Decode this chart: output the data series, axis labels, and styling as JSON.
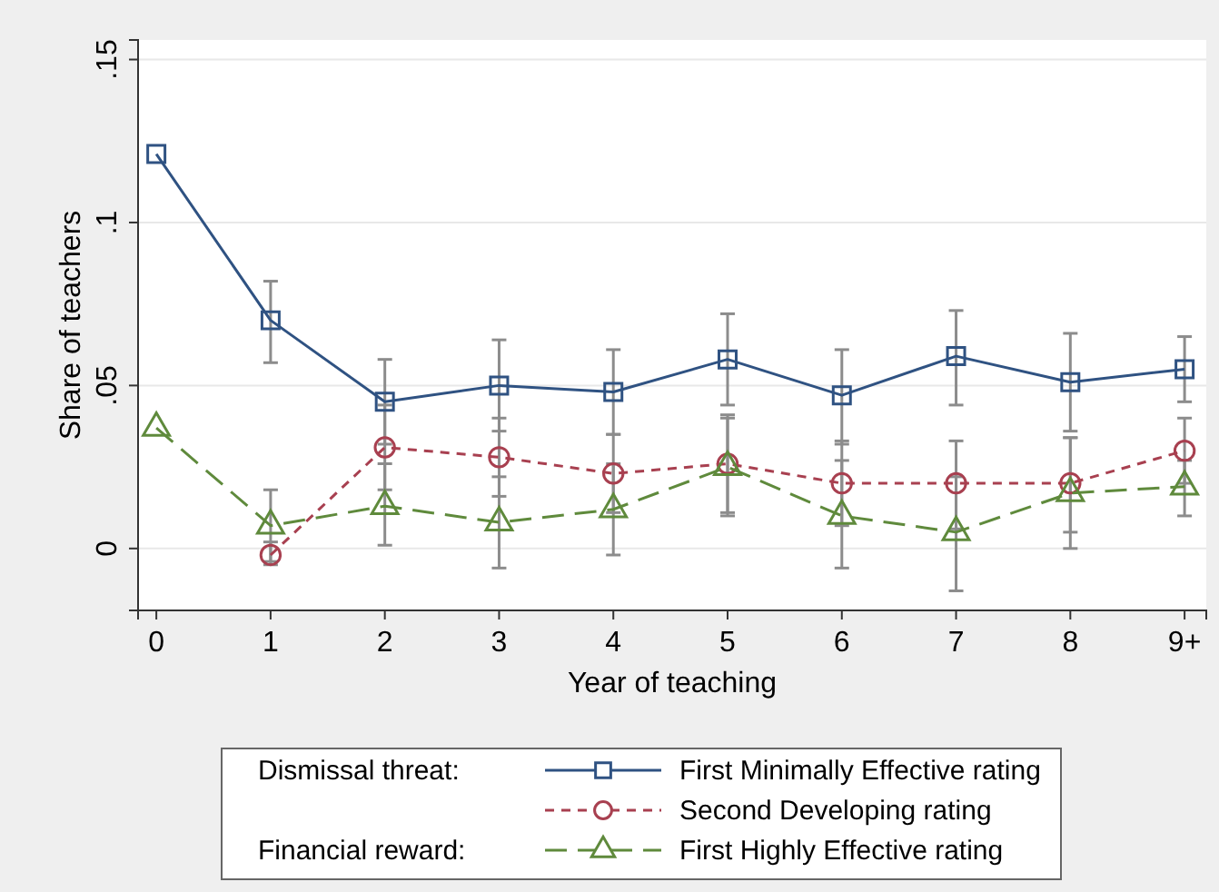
{
  "chart_data": {
    "type": "line",
    "xlabel": "Year of teaching",
    "ylabel": "Share of teachers",
    "x": [
      0,
      1,
      2,
      3,
      4,
      5,
      6,
      7,
      8,
      9
    ],
    "xlim": [
      -0.16,
      9.19
    ],
    "xticks": [
      0,
      1,
      2,
      3,
      4,
      5,
      6,
      7,
      8,
      {
        "value": 9,
        "label": "9+"
      }
    ],
    "ylim": [
      -0.019,
      0.156
    ],
    "yticks": [
      0,
      {
        "value": 0.05,
        "label": ".05"
      },
      {
        "value": 0.1,
        "label": ".1"
      },
      {
        "value": 0.15,
        "label": ".15"
      }
    ],
    "grid": "y",
    "legend": "bottom",
    "annotations": [
      "Dismissal threat:",
      "Financial reward:"
    ],
    "series": [
      {
        "name": "First Minimally Effective rating",
        "color": "#2f5282",
        "marker": "square",
        "line_style": "solid",
        "values": [
          0.121,
          0.07,
          0.045,
          0.05,
          0.048,
          0.058,
          0.047,
          0.059,
          0.051,
          0.055
        ],
        "errors": [
          null,
          [
            0.057,
            0.082
          ],
          [
            0.032,
            0.058
          ],
          [
            0.036,
            0.064
          ],
          [
            0.035,
            0.061
          ],
          [
            0.044,
            0.072
          ],
          [
            0.032,
            0.061
          ],
          [
            0.044,
            0.073
          ],
          [
            0.036,
            0.066
          ],
          [
            0.045,
            0.065
          ]
        ]
      },
      {
        "name": "Second Developing rating",
        "color": "#a84050",
        "marker": "circle",
        "line_style": "dashed",
        "values": [
          null,
          -0.002,
          0.031,
          0.028,
          0.023,
          0.026,
          0.02,
          0.02,
          0.02,
          0.03
        ],
        "errors": [
          null,
          [
            -0.005,
            0.002
          ],
          [
            0.018,
            0.044
          ],
          [
            0.016,
            0.04
          ],
          [
            0.011,
            0.035
          ],
          [
            0.011,
            0.041
          ],
          [
            0.007,
            0.033
          ],
          [
            0.006,
            0.033
          ],
          [
            0.005,
            0.034
          ],
          [
            0.02,
            0.04
          ]
        ]
      },
      {
        "name": "First Highly Effective rating",
        "color": "#5f8a3c",
        "marker": "triangle",
        "line_style": "longdash",
        "values": [
          0.037,
          0.007,
          0.013,
          0.008,
          0.012,
          0.025,
          0.01,
          0.005,
          0.017,
          0.019
        ],
        "errors": [
          null,
          [
            -0.004,
            0.018
          ],
          [
            0.001,
            0.026
          ],
          [
            -0.006,
            0.022
          ],
          [
            -0.002,
            0.026
          ],
          [
            0.01,
            0.04
          ],
          [
            -0.006,
            0.027
          ],
          [
            -0.013,
            0.022
          ],
          [
            0.0,
            0.034
          ],
          [
            0.01,
            0.027
          ]
        ]
      }
    ]
  }
}
